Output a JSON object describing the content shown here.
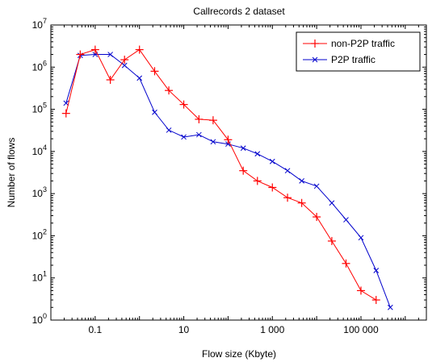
{
  "chart_data": {
    "type": "line",
    "title": "Callrecords 2 dataset",
    "xlabel": "Flow size (Kbyte)",
    "ylabel": "Number of flows",
    "x_scale": "log",
    "y_scale": "log",
    "xlim": [
      0.01,
      3000000
    ],
    "ylim": [
      1,
      10000000
    ],
    "x_ticks": [
      {
        "value": 0.1,
        "label": "0.1"
      },
      {
        "value": 10,
        "label": "10"
      },
      {
        "value": 1000,
        "label": "1 000"
      },
      {
        "value": 100000,
        "label": "100 000"
      }
    ],
    "y_ticks": [
      {
        "value": 1,
        "mantissa": "10",
        "exp": "0"
      },
      {
        "value": 10,
        "mantissa": "10",
        "exp": "1"
      },
      {
        "value": 100,
        "mantissa": "10",
        "exp": "2"
      },
      {
        "value": 1000,
        "mantissa": "10",
        "exp": "3"
      },
      {
        "value": 10000,
        "mantissa": "10",
        "exp": "4"
      },
      {
        "value": 100000,
        "mantissa": "10",
        "exp": "5"
      },
      {
        "value": 1000000,
        "mantissa": "10",
        "exp": "6"
      },
      {
        "value": 10000000,
        "mantissa": "10",
        "exp": "7"
      }
    ],
    "grid": false,
    "legend_position": "top-right",
    "series": [
      {
        "name": "non-P2P traffic",
        "color": "#ff0000",
        "marker": "plus",
        "x": [
          0.022,
          0.046,
          0.1,
          0.22,
          0.46,
          1.0,
          2.2,
          4.6,
          10,
          22,
          46,
          100,
          220,
          460,
          1000,
          2200,
          4600,
          10000,
          22000,
          46000,
          100000,
          220000
        ],
        "y": [
          80000,
          2000000,
          2600000,
          500000,
          1500000,
          2600000,
          800000,
          280000,
          130000,
          58000,
          55000,
          19000,
          3500,
          2000,
          1400,
          800,
          600,
          280,
          75,
          22,
          5,
          3
        ]
      },
      {
        "name": "P2P traffic",
        "color": "#0000cc",
        "marker": "x",
        "x": [
          0.022,
          0.046,
          0.1,
          0.22,
          0.46,
          1.0,
          2.2,
          4.6,
          10,
          22,
          46,
          100,
          220,
          460,
          1000,
          2200,
          4600,
          10000,
          22000,
          46000,
          100000,
          220000,
          460000
        ],
        "y": [
          140000,
          1900000,
          2000000,
          2000000,
          1100000,
          550000,
          85000,
          32000,
          22000,
          25000,
          17000,
          15000,
          12000,
          8800,
          5800,
          3500,
          2000,
          1500,
          600,
          240,
          90,
          15,
          2
        ]
      }
    ]
  }
}
